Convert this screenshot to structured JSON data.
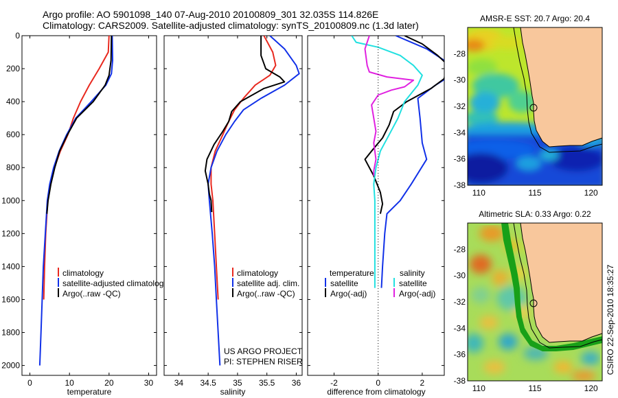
{
  "header": {
    "line1": "Argo profile: AO 5901098_140 07-Aug-2010 20100809_301 32.035S 114.826E",
    "line2": "Climatology: CARS2009. Satellite-adjusted climatology: synTS_20100809.nc (1.3d later)"
  },
  "side_label": "CSIRO 22-Sep-2010 18:35:27",
  "credit": {
    "line1": "US ARGO PROJECT",
    "line2": "PI: STEPHEN RISER"
  },
  "colors": {
    "climatology": "#e8281e",
    "satellite": "#1030e8",
    "argo": "#000000",
    "salinity_sat": "#20e0e0",
    "salinity_argo": "#e020e0"
  },
  "chart_data": [
    {
      "id": "temperature",
      "type": "line",
      "xlabel": "temperature",
      "xlim": [
        -2,
        32
      ],
      "xticks": [
        0,
        10,
        20,
        30
      ],
      "ylim": [
        2060,
        0
      ],
      "yticks": [
        0,
        200,
        400,
        600,
        800,
        1000,
        1200,
        1400,
        1600,
        1800,
        2000
      ],
      "legend": [
        "climatology",
        "satellite-adjusted climatolog",
        "Argo(..raw -QC)"
      ],
      "series": [
        {
          "name": "climatology",
          "color": "#e8281e",
          "points": [
            [
              20.0,
              0
            ],
            [
              19.8,
              100
            ],
            [
              17.5,
              200
            ],
            [
              15.0,
              300
            ],
            [
              12.8,
              400
            ],
            [
              11.0,
              500
            ],
            [
              9.6,
              600
            ],
            [
              7.7,
              700
            ],
            [
              6.2,
              800
            ],
            [
              5.2,
              900
            ],
            [
              4.5,
              1000
            ],
            [
              4.0,
              1200
            ],
            [
              3.7,
              1400
            ],
            [
              3.5,
              1600
            ]
          ]
        },
        {
          "name": "satellite-adjusted climatolog",
          "color": "#1030e8",
          "points": [
            [
              20.8,
              0
            ],
            [
              20.9,
              150
            ],
            [
              20.6,
              230
            ],
            [
              19.2,
              300
            ],
            [
              15.5,
              400
            ],
            [
              11.6,
              500
            ],
            [
              9.3,
              600
            ],
            [
              7.4,
              700
            ],
            [
              6.0,
              800
            ],
            [
              5.0,
              900
            ],
            [
              4.4,
              1000
            ],
            [
              3.9,
              1200
            ],
            [
              3.4,
              1400
            ],
            [
              3.1,
              1600
            ],
            [
              2.8,
              1800
            ],
            [
              2.5,
              2000
            ]
          ]
        },
        {
          "name": "Argo(..raw -QC)",
          "color": "#000000",
          "points": [
            [
              20.6,
              0
            ],
            [
              20.5,
              150
            ],
            [
              20.0,
              240
            ],
            [
              19.0,
              300
            ],
            [
              16.0,
              400
            ],
            [
              11.8,
              500
            ],
            [
              9.5,
              600
            ],
            [
              7.5,
              700
            ],
            [
              6.3,
              800
            ],
            [
              5.3,
              900
            ],
            [
              4.6,
              1000
            ],
            [
              4.3,
              1080
            ]
          ]
        }
      ]
    },
    {
      "id": "salinity",
      "type": "line",
      "xlabel": "salinity",
      "xlim": [
        33.75,
        36.1
      ],
      "xticks": [
        34,
        34.5,
        35,
        35.5,
        36
      ],
      "xticklabels": [
        "34",
        "34.5",
        "35",
        "35.5",
        "36"
      ],
      "ylim": [
        2060,
        0
      ],
      "legend": [
        "climatology",
        "satellite adj. clim.",
        "Argo(..raw -QC)"
      ],
      "series": [
        {
          "name": "climatology",
          "color": "#e8281e",
          "points": [
            [
              35.45,
              0
            ],
            [
              35.6,
              100
            ],
            [
              35.65,
              180
            ],
            [
              35.55,
              240
            ],
            [
              35.3,
              300
            ],
            [
              35.1,
              380
            ],
            [
              34.95,
              450
            ],
            [
              34.85,
              520
            ],
            [
              34.75,
              600
            ],
            [
              34.62,
              700
            ],
            [
              34.55,
              800
            ],
            [
              34.55,
              900
            ],
            [
              34.58,
              1000
            ],
            [
              34.61,
              1200
            ],
            [
              34.64,
              1400
            ],
            [
              34.67,
              1600
            ]
          ]
        },
        {
          "name": "satellite adj. clim.",
          "color": "#1030e8",
          "points": [
            [
              35.55,
              0
            ],
            [
              35.8,
              80
            ],
            [
              36.0,
              180
            ],
            [
              36.05,
              230
            ],
            [
              35.8,
              300
            ],
            [
              35.4,
              380
            ],
            [
              35.1,
              450
            ],
            [
              34.95,
              520
            ],
            [
              34.8,
              600
            ],
            [
              34.65,
              700
            ],
            [
              34.55,
              800
            ],
            [
              34.5,
              900
            ],
            [
              34.52,
              1000
            ],
            [
              34.57,
              1200
            ],
            [
              34.61,
              1400
            ],
            [
              34.64,
              1600
            ],
            [
              34.67,
              1800
            ],
            [
              34.7,
              2000
            ]
          ]
        },
        {
          "name": "Argo(..raw -QC)",
          "color": "#000000",
          "points": [
            [
              35.4,
              0
            ],
            [
              35.4,
              120
            ],
            [
              35.48,
              200
            ],
            [
              35.72,
              250
            ],
            [
              35.8,
              280
            ],
            [
              35.45,
              320
            ],
            [
              35.05,
              400
            ],
            [
              34.9,
              460
            ],
            [
              34.85,
              520
            ],
            [
              34.75,
              580
            ],
            [
              34.6,
              660
            ],
            [
              34.48,
              750
            ],
            [
              34.45,
              820
            ],
            [
              34.5,
              900
            ],
            [
              34.52,
              960
            ],
            [
              34.55,
              1000
            ],
            [
              34.56,
              1070
            ]
          ]
        }
      ]
    },
    {
      "id": "difference",
      "type": "line",
      "xlabel": "difference from climatology",
      "xlim": [
        -3.2,
        3
      ],
      "xticks": [
        -2,
        0,
        2
      ],
      "ylim": [
        2060,
        0
      ],
      "legend_left_title": "temperature",
      "legend_right_title": "salinity",
      "legend_left": [
        "satellite",
        "Argo(-adj)"
      ],
      "legend_right": [
        "satellite",
        "Argo(-adj)"
      ],
      "series": [
        {
          "name": "temperature satellite",
          "color": "#1030e8",
          "points": [
            [
              0.8,
              0
            ],
            [
              2.2,
              80
            ],
            [
              3.0,
              150
            ],
            [
              3.2,
              250
            ],
            [
              2.6,
              300
            ],
            [
              1.8,
              380
            ],
            [
              1.9,
              500
            ],
            [
              2.0,
              650
            ],
            [
              2.2,
              750
            ],
            [
              1.5,
              900
            ],
            [
              1.0,
              1000
            ],
            [
              0.4,
              1080
            ],
            [
              0.3,
              1200
            ],
            [
              0.2,
              1400
            ],
            [
              0.15,
              1530
            ]
          ]
        },
        {
          "name": "temperature Argo(-adj)",
          "color": "#000000",
          "points": [
            [
              1.2,
              0
            ],
            [
              2.0,
              50
            ],
            [
              2.7,
              120
            ],
            [
              3.1,
              170
            ],
            [
              3.0,
              260
            ],
            [
              2.4,
              320
            ],
            [
              1.3,
              400
            ],
            [
              0.7,
              460
            ],
            [
              0.5,
              540
            ],
            [
              0.2,
              620
            ],
            [
              -0.3,
              700
            ],
            [
              -0.6,
              750
            ],
            [
              -0.2,
              850
            ],
            [
              0.1,
              950
            ],
            [
              0.2,
              1020
            ],
            [
              0.1,
              1080
            ]
          ]
        },
        {
          "name": "salinity satellite",
          "color": "#20e0e0",
          "points": [
            [
              -1.2,
              0
            ],
            [
              -1.0,
              40
            ],
            [
              0.0,
              70
            ],
            [
              1.0,
              120
            ],
            [
              1.6,
              180
            ],
            [
              2.0,
              240
            ],
            [
              1.8,
              300
            ],
            [
              1.2,
              400
            ],
            [
              0.9,
              500
            ],
            [
              0.5,
              600
            ],
            [
              0.1,
              700
            ],
            [
              -0.1,
              800
            ],
            [
              -0.2,
              900
            ],
            [
              -0.15,
              1000
            ],
            [
              -0.15,
              1100
            ],
            [
              -0.15,
              1300
            ],
            [
              -0.15,
              1500
            ],
            [
              -0.15,
              1530
            ]
          ]
        },
        {
          "name": "salinity Argo(-adj)",
          "color": "#e020e0",
          "points": [
            [
              -0.4,
              0
            ],
            [
              -0.6,
              80
            ],
            [
              -0.5,
              180
            ],
            [
              -0.4,
              220
            ],
            [
              0.4,
              250
            ],
            [
              1.6,
              270
            ],
            [
              1.2,
              310
            ],
            [
              0.6,
              330
            ],
            [
              0.0,
              360
            ],
            [
              -0.3,
              420
            ],
            [
              -0.2,
              500
            ],
            [
              -0.1,
              580
            ],
            [
              -0.2,
              650
            ],
            [
              -0.1,
              750
            ],
            [
              -0.2,
              820
            ],
            [
              -0.2,
              850
            ]
          ]
        }
      ]
    },
    {
      "id": "sst_map",
      "type": "heatmap",
      "title": "AMSR-E SST: 20.7 Argo: 20.4",
      "xlim": [
        109,
        121
      ],
      "ylim": [
        -38,
        -26
      ],
      "xticks": [
        110,
        115,
        120
      ],
      "yticks": [
        -28,
        -30,
        -32,
        -34,
        -36,
        -38
      ],
      "marker": [
        114.83,
        -32.04
      ]
    },
    {
      "id": "sla_map",
      "type": "heatmap",
      "title": "Altimetric SLA: 0.33 Argo: 0.22",
      "xlim": [
        109,
        121
      ],
      "ylim": [
        -38,
        -26
      ],
      "xticks": [
        110,
        115,
        120
      ],
      "yticks": [
        -28,
        -30,
        -32,
        -34,
        -36,
        -38
      ],
      "marker": [
        114.83,
        -32.04
      ]
    }
  ]
}
